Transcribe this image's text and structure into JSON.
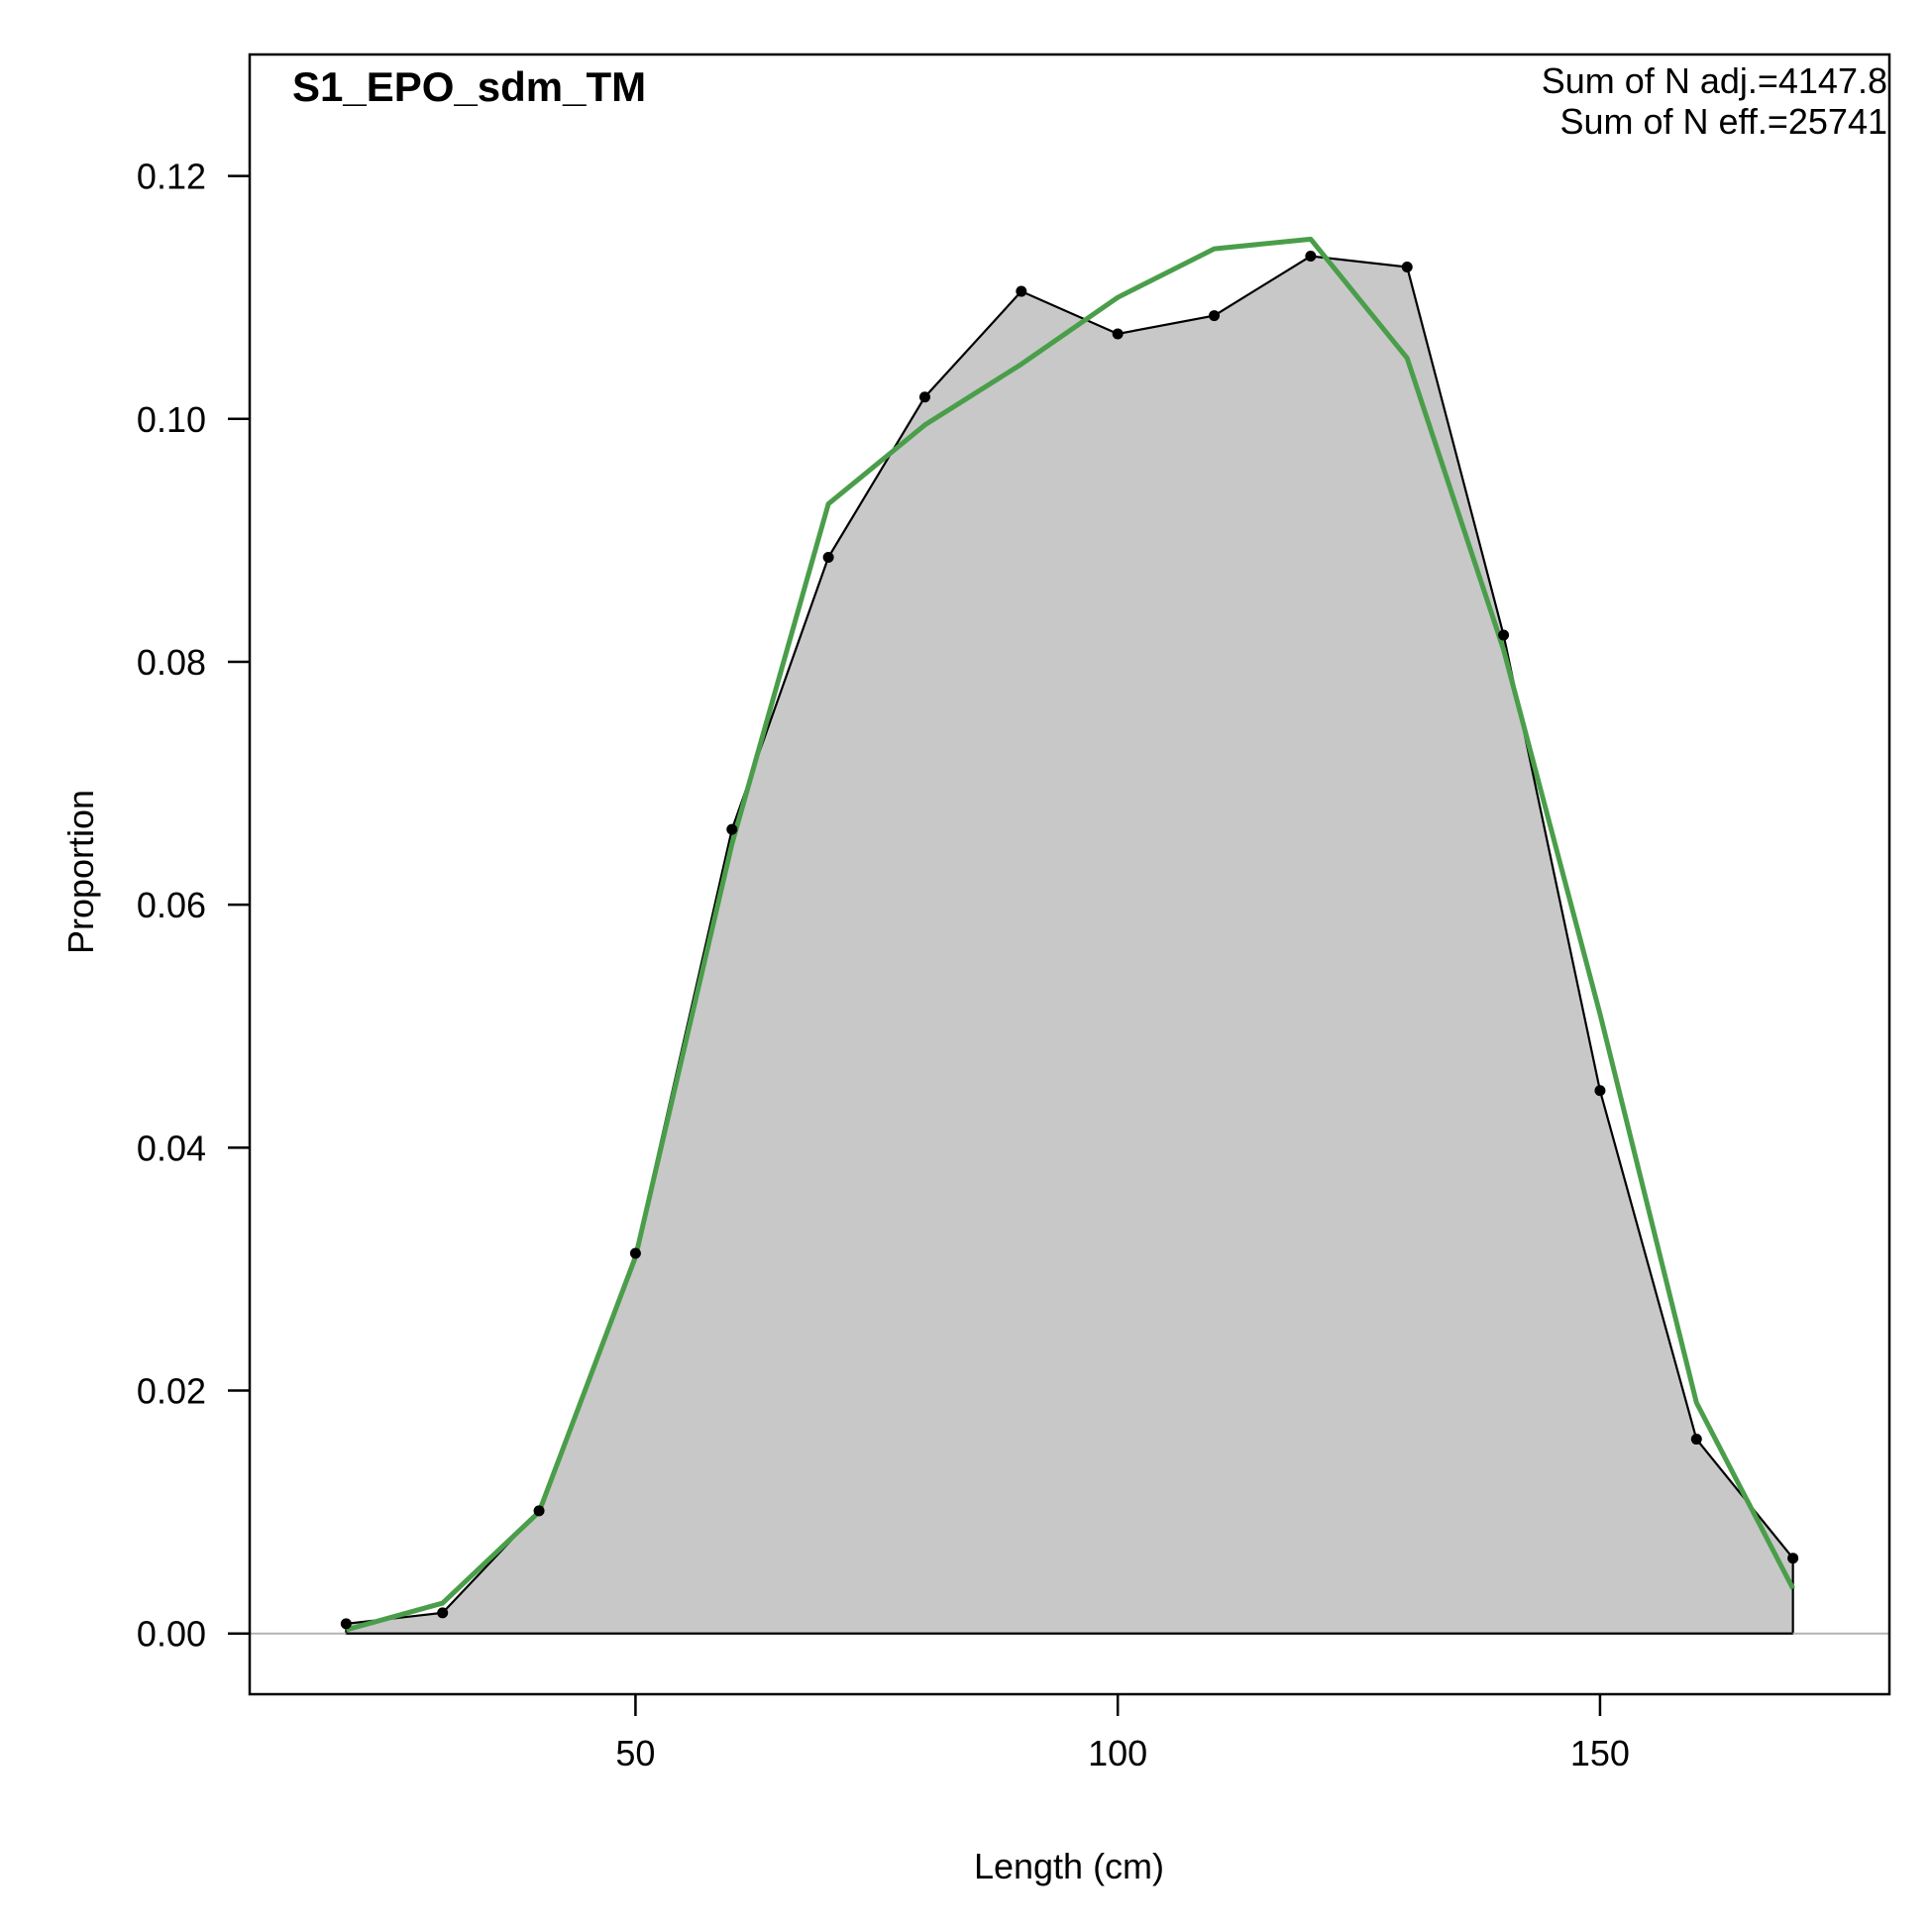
{
  "chart_data": {
    "type": "area",
    "title": "S1_EPO_sdm_TM",
    "xlabel": "Length (cm)",
    "ylabel": "Proportion",
    "xlim": [
      10,
      180
    ],
    "ylim": [
      -0.005,
      0.13
    ],
    "xticks": [
      50,
      100,
      150
    ],
    "yticks": [
      0.0,
      0.02,
      0.04,
      0.06,
      0.08,
      0.1,
      0.12
    ],
    "xtick_labels": [
      "50",
      "100",
      "150"
    ],
    "ytick_labels": [
      "0.00",
      "0.02",
      "0.04",
      "0.06",
      "0.08",
      "0.10",
      "0.12"
    ],
    "annotations": [
      "Sum of N adj.=4147.8",
      "Sum of N eff.=25741"
    ],
    "grid": false,
    "series": [
      {
        "kind": "observed",
        "color": "#000000",
        "fill": "#c8c8c8",
        "x": [
          20,
          30,
          40,
          50,
          60,
          70,
          80,
          90,
          100,
          110,
          120,
          130,
          140,
          150,
          160,
          170
        ],
        "y": [
          0.0008,
          0.0017,
          0.0101,
          0.0313,
          0.0662,
          0.0886,
          0.1018,
          0.1105,
          0.107,
          0.1085,
          0.1134,
          0.1125,
          0.0822,
          0.0447,
          0.016,
          0.0062
        ]
      },
      {
        "kind": "expected",
        "color": "#4a9e4a",
        "x": [
          20,
          30,
          40,
          50,
          60,
          70,
          80,
          90,
          100,
          110,
          120,
          130,
          140,
          150,
          160,
          170
        ],
        "y": [
          0.0003,
          0.0025,
          0.01,
          0.031,
          0.065,
          0.093,
          0.0995,
          0.1045,
          0.11,
          0.114,
          0.1148,
          0.105,
          0.081,
          0.051,
          0.019,
          0.0037
        ]
      }
    ]
  }
}
